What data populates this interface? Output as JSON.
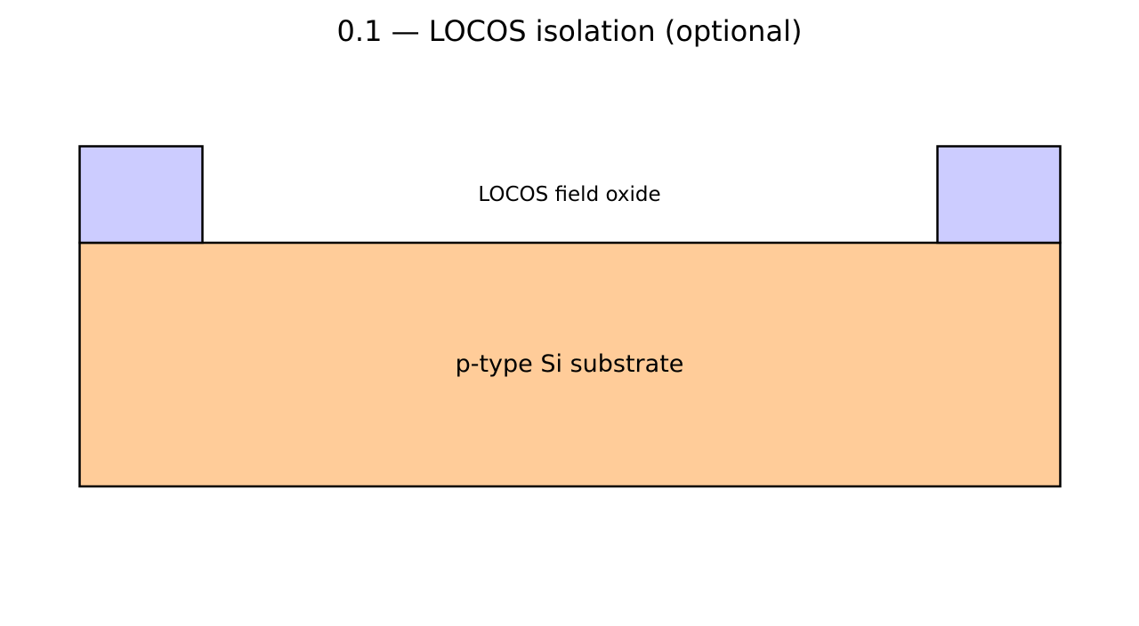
{
  "title": "0.1 — LOCOS isolation (optional)",
  "layers": {
    "field_oxide_label": "LOCOS field oxide",
    "substrate_label": "p-type Si substrate"
  },
  "colors": {
    "oxide_fill": "#ccccff",
    "substrate_fill": "#ffcc99",
    "outline": "#000000",
    "background": "#ffffff"
  }
}
